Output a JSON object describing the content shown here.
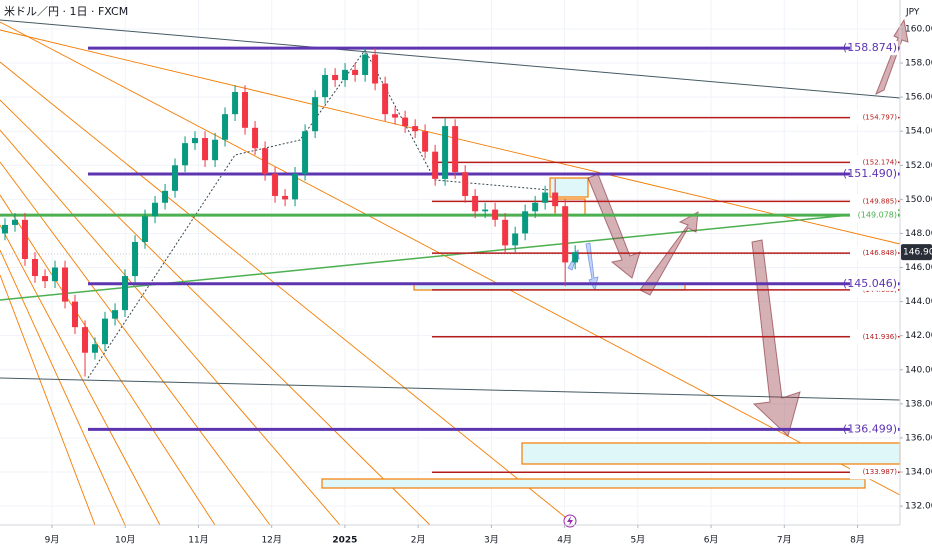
{
  "chart_data": {
    "type": "candlestick",
    "title": "米ドル／円 · 1日 · FXCM",
    "y_unit": "JPY",
    "up_color": "#089981",
    "down_color": "#f23645",
    "grid": true,
    "xlim": [
      8.29,
      20.58
    ],
    "ylim": [
      130.89,
      161.7
    ],
    "xticks": [
      {
        "value": 9,
        "label": "9月"
      },
      {
        "value": 10,
        "label": "10月"
      },
      {
        "value": 11,
        "label": "11月"
      },
      {
        "value": 12,
        "label": "12月"
      },
      {
        "value": 13,
        "label": "2025"
      },
      {
        "value": 14,
        "label": "2月"
      },
      {
        "value": 15,
        "label": "3月"
      },
      {
        "value": 16,
        "label": "4月"
      },
      {
        "value": 17,
        "label": "5月"
      },
      {
        "value": 18,
        "label": "6月"
      },
      {
        "value": 19,
        "label": "7月"
      },
      {
        "value": 20,
        "label": "8月"
      }
    ],
    "yticks": [
      {
        "value": 132,
        "label": "132.000"
      },
      {
        "value": 134,
        "label": "134.000"
      },
      {
        "value": 136,
        "label": "136.000"
      },
      {
        "value": 138,
        "label": "138.000"
      },
      {
        "value": 140,
        "label": "140.000"
      },
      {
        "value": 142,
        "label": "142.000"
      },
      {
        "value": 144,
        "label": "144.000"
      },
      {
        "value": 146,
        "label": "146.000"
      },
      {
        "value": 148,
        "label": "148.000"
      },
      {
        "value": 150,
        "label": "150.000"
      },
      {
        "value": 152,
        "label": "152.000"
      },
      {
        "value": 154,
        "label": "154.000"
      },
      {
        "value": 156,
        "label": "156.000"
      },
      {
        "value": 158,
        "label": "158.000"
      },
      {
        "value": 160,
        "label": "160.000"
      }
    ],
    "x": [
      8.358,
      8.495,
      8.631,
      8.768,
      8.905,
      9.041,
      9.178,
      9.314,
      9.451,
      9.587,
      9.724,
      9.861,
      9.997,
      10.134,
      10.27,
      10.407,
      10.544,
      10.68,
      10.817,
      10.953,
      11.09,
      11.227,
      11.363,
      11.5,
      11.636,
      11.773,
      11.91,
      12.046,
      12.183,
      12.319,
      12.456,
      12.593,
      12.729,
      12.866,
      13.002,
      13.139,
      13.276,
      13.412,
      13.549,
      13.685,
      13.822,
      13.959,
      14.095,
      14.232,
      14.368,
      14.505,
      14.642,
      14.778,
      14.915,
      15.051,
      15.188,
      15.325,
      15.461,
      15.598,
      15.734,
      15.871,
      16.008,
      16.144
    ],
    "open": [
      148,
      148.5,
      148.8,
      146.5,
      145.5,
      145.2,
      146,
      144,
      142.5,
      141,
      141.5,
      143,
      143.5,
      145.5,
      147.5,
      149,
      149.8,
      150.5,
      152,
      153.3,
      153.6,
      152.3,
      153.5,
      155,
      156.3,
      154.2,
      153,
      151.5,
      150.2,
      150,
      151.5,
      154,
      156,
      157.3,
      157,
      157.6,
      157.3,
      158.5,
      156.8,
      155,
      154.8,
      154.3,
      154,
      152.8,
      151.2,
      154.3,
      151.6,
      150.2,
      149.3,
      149.4,
      148.8,
      147.3,
      148,
      149.3,
      149.8,
      150.4,
      149.6,
      146.3
    ],
    "high": [
      148.9,
      149.2,
      149.2,
      146.9,
      145.9,
      146.4,
      146.4,
      144.4,
      142.9,
      141.9,
      143.4,
      143.9,
      145.9,
      147.9,
      149.4,
      150.2,
      150.9,
      152.4,
      153.7,
      154.0,
      154.0,
      153.9,
      155.4,
      156.7,
      156.7,
      154.6,
      153.4,
      151.9,
      150.6,
      151.9,
      154.4,
      156.4,
      157.7,
      157.7,
      158.0,
      158.0,
      158.9,
      158.9,
      157.2,
      155.4,
      155.2,
      154.7,
      154.4,
      153.2,
      154.8,
      154.7,
      152.0,
      150.6,
      149.8,
      149.8,
      149.2,
      148.4,
      149.7,
      150.2,
      150.8,
      151.2,
      150.0,
      147.3
    ],
    "low": [
      147.6,
      148.1,
      146.1,
      145.1,
      144.8,
      144.8,
      143.6,
      142.1,
      139.6,
      140.6,
      141.1,
      142.6,
      143.1,
      145.1,
      147.1,
      148.6,
      149.4,
      150.1,
      151.6,
      152.9,
      151.9,
      151.9,
      153.1,
      154.6,
      153.8,
      152.6,
      151.1,
      149.8,
      149.6,
      149.6,
      151.1,
      153.6,
      155.6,
      156.6,
      156.6,
      156.9,
      156.9,
      156.4,
      154.6,
      154.4,
      153.9,
      153.6,
      152.4,
      150.8,
      150.8,
      151.2,
      149.8,
      148.9,
      148.9,
      148.4,
      146.9,
      146.9,
      147.6,
      148.9,
      149.4,
      149.2,
      144.9,
      145.9
    ],
    "close": [
      148.5,
      148.8,
      146.5,
      145.5,
      145.2,
      146,
      144,
      142.5,
      141,
      141.5,
      143,
      143.5,
      145.5,
      147.5,
      149,
      149.8,
      150.5,
      152,
      153.3,
      153.6,
      152.3,
      153.5,
      155,
      156.3,
      154.2,
      153,
      151.5,
      150.2,
      150,
      151.5,
      154,
      156,
      157.3,
      157,
      157.6,
      157.3,
      158.5,
      156.8,
      155,
      154.8,
      154.3,
      154,
      152.8,
      151.2,
      154.3,
      151.6,
      150.2,
      149.3,
      149.4,
      148.8,
      147.3,
      148,
      149.3,
      149.8,
      150.4,
      149.6,
      146.3,
      146.904
    ],
    "last_price": 146.904,
    "major_color": "#5e35b1",
    "major_levels": [
      {
        "value": 158.874,
        "label": "(158.874)"
      },
      {
        "value": 151.49,
        "label": "(151.490)"
      },
      {
        "value": 145.046,
        "label": "(145.046)"
      },
      {
        "value": 136.499,
        "label": "(136.499)"
      }
    ],
    "minor_color": "#b71c1c",
    "minor_levels": [
      {
        "value": 154.797,
        "label": "(154.797)"
      },
      {
        "value": 152.174,
        "label": "(152.174)"
      },
      {
        "value": 149.885,
        "label": "(149.885)"
      },
      {
        "value": 146.848,
        "label": "(146.848)"
      },
      {
        "value": 144.689,
        "label": "(144.689)"
      },
      {
        "value": 141.936,
        "label": "(141.936)"
      },
      {
        "value": 133.987,
        "label": "(133.987)"
      }
    ],
    "trend_color": "#4caf50",
    "trend_level": {
      "value": 149.078,
      "label": "(149.078)"
    }
  }
}
